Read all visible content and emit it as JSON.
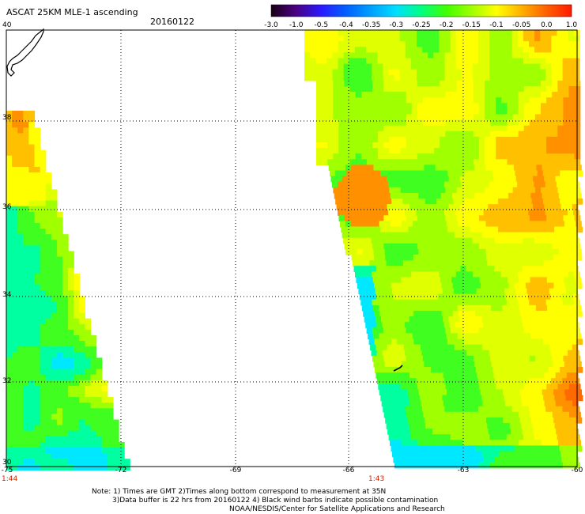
{
  "title": "ASCAT 25KM MLE-1 ascending",
  "date": "20160122",
  "colorbar": {
    "labels": [
      "-3.0",
      "-1.0",
      "-0.5",
      "-0.4",
      "-0.35",
      "-0.3",
      "-0.25",
      "-0.2",
      "-0.15",
      "-0.1",
      "-0.05",
      "0.0",
      "1.0"
    ],
    "colors": [
      "#1a0014",
      "#4b0082",
      "#2a1aff",
      "#0060ff",
      "#00a0ff",
      "#00e0ff",
      "#00ff80",
      "#40ff00",
      "#a0ff00",
      "#ffff00",
      "#ffb000",
      "#ff6000",
      "#ff1a00"
    ]
  },
  "map": {
    "lon_ticks": [
      "-75",
      "-72",
      "-69",
      "-66",
      "-63",
      "-60"
    ],
    "lat_ticks": [
      "40",
      "38",
      "36",
      "34",
      "32",
      "30"
    ],
    "swath_times": [
      "1:44",
      "1:43"
    ]
  },
  "notes": [
    "Note: 1) Times are GMT 2)Times along bottom correspond to measurement at 35N",
    "3)Data buffer is 22 hrs from 20160122 4) Black wind barbs indicate possible contamination",
    "NOAA/NESDIS/Center for Satellite Applications and Research"
  ]
}
